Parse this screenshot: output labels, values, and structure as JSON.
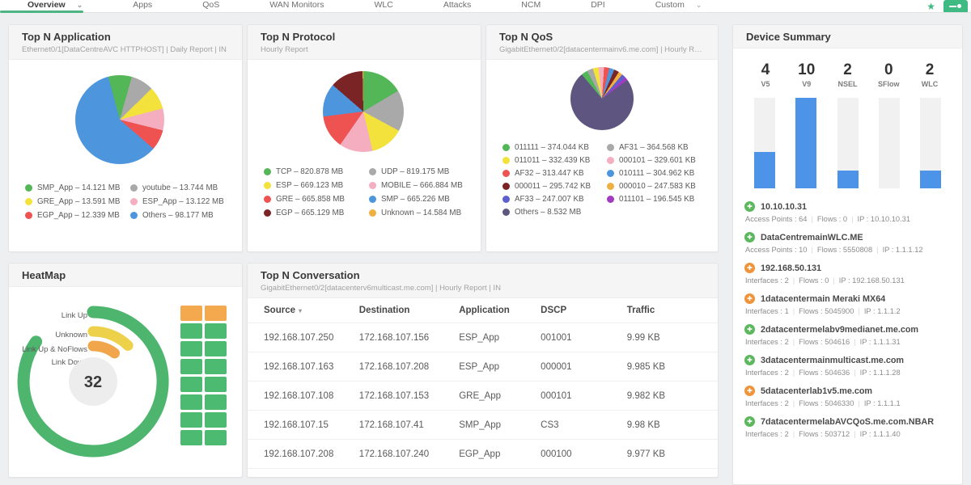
{
  "nav": {
    "tabs": [
      {
        "label": "Overview",
        "chevron": true,
        "active": true
      },
      {
        "label": "Apps"
      },
      {
        "label": "QoS"
      },
      {
        "label": "WAN Monitors"
      },
      {
        "label": "WLC"
      },
      {
        "label": "Attacks"
      },
      {
        "label": "NCM"
      },
      {
        "label": "DPI"
      },
      {
        "label": "Custom",
        "chevron": true
      }
    ],
    "accent_green": "#4db581"
  },
  "icons": {
    "chevron": "⌄",
    "star": "★",
    "sort_caret": "▾",
    "device_status_glyph": "✚"
  },
  "panels": {
    "application": {
      "title": "Top N Application",
      "subtitle": "Ethernet0/1[DataCentreAVC HTTPHOST] | Daily Report | IN",
      "pie": {
        "start_deg": -15,
        "slices": [
          {
            "label": "SMP_App",
            "value": "14.121 MB",
            "pct": 8.55,
            "color": "#53b657"
          },
          {
            "label": "youtube",
            "value": "13.744 MB",
            "pct": 8.32,
            "color": "#a9a9a9"
          },
          {
            "label": "GRE_App",
            "value": "13.591 MB",
            "pct": 8.23,
            "color": "#f3e13c"
          },
          {
            "label": "ESP_App",
            "value": "13.122 MB",
            "pct": 7.95,
            "color": "#f5aec0"
          },
          {
            "label": "EGP_App",
            "value": "12.339 MB",
            "pct": 7.47,
            "color": "#ee5351"
          },
          {
            "label": "Others",
            "value": "98.177 MB",
            "pct": 59.48,
            "color": "#4d96dd"
          }
        ]
      }
    },
    "protocol": {
      "title": "Top N Protocol",
      "subtitle": "Hourly Report",
      "pie": {
        "start_deg": 0,
        "slices": [
          {
            "label": "TCP",
            "value": "820.878 MB",
            "pct": 16.46,
            "color": "#53b657"
          },
          {
            "label": "UDP",
            "value": "819.175 MB",
            "pct": 16.43,
            "color": "#a9a9a9"
          },
          {
            "label": "ESP",
            "value": "669.123 MB",
            "pct": 13.42,
            "color": "#f3e13c"
          },
          {
            "label": "MOBILE",
            "value": "666.884 MB",
            "pct": 13.37,
            "color": "#f5aec0"
          },
          {
            "label": "GRE",
            "value": "665.858 MB",
            "pct": 13.35,
            "color": "#ee5351"
          },
          {
            "label": "SMP",
            "value": "665.226 MB",
            "pct": 13.34,
            "color": "#4d96dd"
          },
          {
            "label": "EGP",
            "value": "665.129 MB",
            "pct": 13.34,
            "color": "#7a2426"
          },
          {
            "label": "Unknown",
            "value": "14.584 MB",
            "pct": 0.29,
            "color": "#efb041"
          }
        ]
      }
    },
    "qos": {
      "title": "Top N QoS",
      "subtitle": "GigabitEthernet0/2[datacentermainv6.me.com] | Hourly Report ...",
      "pie": {
        "start_deg": -40,
        "slices": [
          {
            "label": "011111",
            "value": "374.044 KB",
            "pct": 3.24,
            "color": "#53b657"
          },
          {
            "label": "AF31",
            "value": "364.568 KB",
            "pct": 3.16,
            "color": "#a9a9a9"
          },
          {
            "label": "011011",
            "value": "332.439 KB",
            "pct": 2.88,
            "color": "#f3e13c"
          },
          {
            "label": "000101",
            "value": "329.601 KB",
            "pct": 2.86,
            "color": "#f5aec0"
          },
          {
            "label": "AF32",
            "value": "313.447 KB",
            "pct": 2.72,
            "color": "#ee5351"
          },
          {
            "label": "010111",
            "value": "304.962 KB",
            "pct": 2.64,
            "color": "#4d96dd"
          },
          {
            "label": "000011",
            "value": "295.742 KB",
            "pct": 2.56,
            "color": "#7a2426"
          },
          {
            "label": "000010",
            "value": "247.583 KB",
            "pct": 2.15,
            "color": "#efb041"
          },
          {
            "label": "AF33",
            "value": "247.007 KB",
            "pct": 2.14,
            "color": "#5d5fce"
          },
          {
            "label": "011101",
            "value": "196.545 KB",
            "pct": 1.7,
            "color": "#a33bc0"
          },
          {
            "label": "Others",
            "value": "8.532 MB",
            "pct": 73.95,
            "color": "#5e5680"
          }
        ]
      }
    },
    "device_summary": {
      "title": "Device Summary",
      "bar_color": "#4d94e8",
      "stats": [
        {
          "label": "V5",
          "value": 4
        },
        {
          "label": "V9",
          "value": 10
        },
        {
          "label": "NSEL",
          "value": 2
        },
        {
          "label": "SFlow",
          "value": 0
        },
        {
          "label": "WLC",
          "value": 2
        }
      ],
      "devices": [
        {
          "name": "10.10.10.31",
          "status": "green",
          "meta": [
            {
              "k": "Access Points",
              "v": "64"
            },
            {
              "k": "Flows",
              "v": "0"
            },
            {
              "k": "IP",
              "v": "10.10.10.31"
            }
          ]
        },
        {
          "name": "DataCentremainWLC.ME",
          "status": "green",
          "meta": [
            {
              "k": "Access Points",
              "v": "10"
            },
            {
              "k": "Flows",
              "v": "5550808"
            },
            {
              "k": "IP",
              "v": "1.1.1.12"
            }
          ]
        },
        {
          "name": "192.168.50.131",
          "status": "orange",
          "meta": [
            {
              "k": "Interfaces",
              "v": "2"
            },
            {
              "k": "Flows",
              "v": "0"
            },
            {
              "k": "IP",
              "v": "192.168.50.131"
            }
          ]
        },
        {
          "name": "1datacentermain Meraki MX64",
          "status": "orange",
          "meta": [
            {
              "k": "Interfaces",
              "v": "1"
            },
            {
              "k": "Flows",
              "v": "5045900"
            },
            {
              "k": "IP",
              "v": "1.1.1.2"
            }
          ]
        },
        {
          "name": "2datacentermelabv9medianet.me.com",
          "status": "green",
          "meta": [
            {
              "k": "Interfaces",
              "v": "2"
            },
            {
              "k": "Flows",
              "v": "504616"
            },
            {
              "k": "IP",
              "v": "1.1.1.31"
            }
          ]
        },
        {
          "name": "3datacentermainmulticast.me.com",
          "status": "green",
          "meta": [
            {
              "k": "Interfaces",
              "v": "2"
            },
            {
              "k": "Flows",
              "v": "504636"
            },
            {
              "k": "IP",
              "v": "1.1.1.28"
            }
          ]
        },
        {
          "name": "5datacenterlab1v5.me.com",
          "status": "orange",
          "meta": [
            {
              "k": "Interfaces",
              "v": "2"
            },
            {
              "k": "Flows",
              "v": "5046330"
            },
            {
              "k": "IP",
              "v": "1.1.1.1"
            }
          ]
        },
        {
          "name": "7datacentermelabAVCQoS.me.com.NBAR",
          "status": "green",
          "meta": [
            {
              "k": "Interfaces",
              "v": "2"
            },
            {
              "k": "Flows",
              "v": "503712"
            },
            {
              "k": "IP",
              "v": "1.1.1.40"
            }
          ]
        }
      ]
    },
    "heatmap": {
      "title": "HeatMap",
      "center_value": "32",
      "gauge": [
        {
          "label": "Link Up",
          "color": "#4db56e",
          "sweep_deg": 305,
          "radius": 86,
          "width": 15
        },
        {
          "label": "Unknown",
          "color": "#edd14b",
          "sweep_deg": 44,
          "radius": 62,
          "width": 13
        },
        {
          "label": "Link Up & NoFlows",
          "color": "#f2a64b",
          "sweep_deg": 37,
          "radius": 44,
          "width": 13
        },
        {
          "label": "Link Down",
          "color": "#e05a4e",
          "sweep_deg": 0,
          "radius": 28,
          "width": 12
        }
      ],
      "grid": {
        "colors": {
          "green": "#4cba70",
          "orange": "#f5a94f"
        },
        "cells": [
          "orange",
          "orange",
          "green",
          "green",
          "green",
          "green",
          "green",
          "green",
          "green",
          "green",
          "green",
          "green",
          "green",
          "green",
          "green",
          "green"
        ]
      }
    },
    "conversation": {
      "title": "Top N Conversation",
      "subtitle": "GigabitEthernet0/2[datacenterv6multicast.me.com] | Hourly Report | IN",
      "columns": [
        "Source",
        "Destination",
        "Application",
        "DSCP",
        "Traffic"
      ],
      "sorted_column": "Source",
      "rows": [
        [
          "192.168.107.250",
          "172.168.107.156",
          "ESP_App",
          "001001",
          "9.99 KB"
        ],
        [
          "192.168.107.163",
          "172.168.107.208",
          "ESP_App",
          "000001",
          "9.985 KB"
        ],
        [
          "192.168.107.108",
          "172.168.107.153",
          "GRE_App",
          "000101",
          "9.982 KB"
        ],
        [
          "192.168.107.15",
          "172.168.107.41",
          "SMP_App",
          "CS3",
          "9.98 KB"
        ],
        [
          "192.168.107.208",
          "172.168.107.240",
          "EGP_App",
          "000100",
          "9.977 KB"
        ]
      ]
    }
  },
  "chart_data": [
    {
      "type": "pie",
      "title": "Top N Application",
      "unit": "MB",
      "categories": [
        "SMP_App",
        "youtube",
        "GRE_App",
        "ESP_App",
        "EGP_App",
        "Others"
      ],
      "values": [
        14.121,
        13.744,
        13.591,
        13.122,
        12.339,
        98.177
      ]
    },
    {
      "type": "pie",
      "title": "Top N Protocol",
      "unit": "MB",
      "categories": [
        "TCP",
        "UDP",
        "ESP",
        "MOBILE",
        "GRE",
        "SMP",
        "EGP",
        "Unknown"
      ],
      "values": [
        820.878,
        819.175,
        669.123,
        666.884,
        665.858,
        665.226,
        665.129,
        14.584
      ]
    },
    {
      "type": "pie",
      "title": "Top N QoS",
      "unit": "KB",
      "categories": [
        "011111",
        "AF31",
        "011011",
        "000101",
        "AF32",
        "010111",
        "000011",
        "000010",
        "AF33",
        "011101",
        "Others"
      ],
      "values": [
        374.044,
        364.568,
        332.439,
        329.601,
        313.447,
        304.962,
        295.742,
        247.583,
        247.007,
        196.545,
        8532
      ]
    },
    {
      "type": "bar",
      "title": "Device Summary",
      "categories": [
        "V5",
        "V9",
        "NSEL",
        "SFlow",
        "WLC"
      ],
      "values": [
        4,
        10,
        2,
        0,
        2
      ],
      "ylim": [
        0,
        10
      ]
    },
    {
      "type": "pie",
      "title": "HeatMap interface status gauge",
      "total": 32,
      "categories": [
        "Link Up",
        "Unknown",
        "Link Up & NoFlows",
        "Link Down"
      ],
      "values_deg": [
        305,
        44,
        37,
        0
      ]
    },
    {
      "type": "table",
      "title": "Top N Conversation",
      "columns": [
        "Source",
        "Destination",
        "Application",
        "DSCP",
        "Traffic"
      ],
      "rows": [
        [
          "192.168.107.250",
          "172.168.107.156",
          "ESP_App",
          "001001",
          "9.99 KB"
        ],
        [
          "192.168.107.163",
          "172.168.107.208",
          "ESP_App",
          "000001",
          "9.985 KB"
        ],
        [
          "192.168.107.108",
          "172.168.107.153",
          "GRE_App",
          "000101",
          "9.982 KB"
        ],
        [
          "192.168.107.15",
          "172.168.107.41",
          "SMP_App",
          "CS3",
          "9.98 KB"
        ],
        [
          "192.168.107.208",
          "172.168.107.240",
          "EGP_App",
          "000100",
          "9.977 KB"
        ]
      ]
    }
  ]
}
